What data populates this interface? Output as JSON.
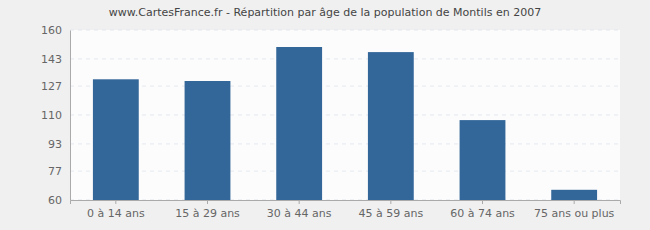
{
  "chart_data": {
    "type": "bar",
    "title": "www.CartesFrance.fr - Répartition par âge de la population de Montils en 2007",
    "categories": [
      "0 à 14 ans",
      "15 à 29 ans",
      "30 à 44 ans",
      "45 à 59 ans",
      "60 à 74 ans",
      "75 ans ou plus"
    ],
    "values": [
      131,
      130,
      150,
      147,
      107,
      66
    ],
    "color": "#336699",
    "ylim": [
      60,
      160
    ],
    "yticks": [
      60,
      77,
      93,
      110,
      127,
      143,
      160
    ],
    "grid": true
  }
}
